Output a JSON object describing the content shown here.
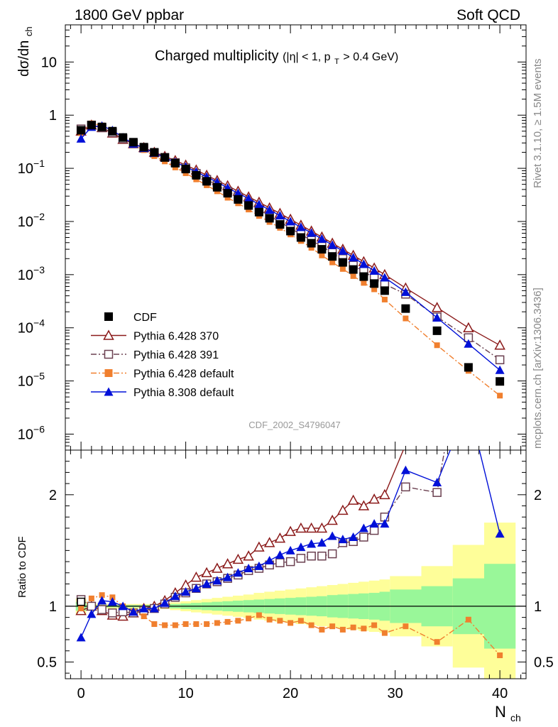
{
  "header": {
    "left": "1800 GeV ppbar",
    "right": "Soft QCD"
  },
  "title": {
    "main": "Charged multiplicity",
    "cut": "(|η| < 1, p",
    "cut_sub": "T",
    "cut_tail": " > 0.4 GeV)"
  },
  "side_labels": {
    "rivet": "Rivet 3.1.10, ≥ 1.5M events",
    "mcplots": "mcplots.cern.ch [arXiv:1306.3436]"
  },
  "analysis_tag": "CDF_2002_S4796047",
  "axes": {
    "ylabel_main": "dσ/dn",
    "ylabel_main_sub": "ch",
    "ylabel_ratio": "Ratio to CDF",
    "xlabel": "N",
    "xlabel_sub": "ch"
  },
  "colors": {
    "cdf": "#000000",
    "p370": "#8b1a1a",
    "p391": "#6b4050",
    "pdef6": "#f07f2e",
    "p8": "#0010d8",
    "band_green": "#99f799",
    "band_yellow": "#fefe99"
  },
  "chart_data": {
    "type": "scatter",
    "main": {
      "y_scale": "log",
      "ylim": [
        5e-07,
        50
      ],
      "ticks_y": [
        "10^-6",
        "10^-5",
        "10^-4",
        "10^-3",
        "10^-2",
        "10^-1",
        "1",
        "10"
      ]
    },
    "ratio": {
      "ylim": [
        0.35,
        2.4
      ],
      "ticks_y": [
        "0.5",
        "1",
        "2"
      ]
    },
    "xlim": [
      -1.5,
      42.5
    ],
    "ticks_x": [
      0,
      10,
      20,
      30,
      40
    ],
    "legend_position": "bottom-left",
    "series": [
      {
        "key": "cdf",
        "name": "CDF",
        "marker": "square-filled",
        "x": [
          0,
          1,
          2,
          3,
          4,
          5,
          6,
          7,
          8,
          9,
          10,
          11,
          12,
          13,
          14,
          15,
          16,
          17,
          18,
          19,
          20,
          21,
          22,
          23,
          24,
          25,
          26,
          27,
          28,
          29,
          31,
          34,
          37,
          40
        ],
        "y": [
          0.52,
          0.65,
          0.6,
          0.5,
          0.38,
          0.31,
          0.25,
          0.2,
          0.16,
          0.125,
          0.097,
          0.074,
          0.057,
          0.044,
          0.034,
          0.026,
          0.02,
          0.015,
          0.0115,
          0.0088,
          0.0066,
          0.005,
          0.0039,
          0.003,
          0.0022,
          0.0017,
          0.00125,
          0.00092,
          0.00068,
          0.0005,
          0.00023,
          8.8e-05,
          1.8e-05,
          9.8e-06
        ]
      },
      {
        "key": "p370",
        "name": "Pythia 6.428 370",
        "marker": "triangle-open",
        "line": "solid",
        "x": [
          0,
          1,
          2,
          3,
          4,
          5,
          6,
          7,
          8,
          9,
          10,
          11,
          12,
          13,
          14,
          15,
          16,
          17,
          18,
          19,
          20,
          21,
          22,
          23,
          24,
          25,
          26,
          27,
          28,
          29,
          31,
          34,
          37,
          40
        ],
        "y": [
          0.5,
          0.65,
          0.58,
          0.46,
          0.35,
          0.29,
          0.245,
          0.2,
          0.168,
          0.14,
          0.115,
          0.093,
          0.074,
          0.059,
          0.047,
          0.037,
          0.029,
          0.023,
          0.018,
          0.0142,
          0.011,
          0.0085,
          0.0066,
          0.0051,
          0.0039,
          0.003,
          0.0023,
          0.00175,
          0.00133,
          0.001,
          0.00056,
          0.00024,
          0.0001,
          4.7e-05
        ],
        "ratio": [
          0.96,
          1.0,
          0.96,
          0.92,
          0.91,
          0.94,
          0.98,
          1.0,
          1.05,
          1.12,
          1.19,
          1.26,
          1.3,
          1.34,
          1.38,
          1.42,
          1.45,
          1.53,
          1.57,
          1.61,
          1.67,
          1.7,
          1.7,
          1.7,
          1.77,
          1.86,
          1.95,
          1.9,
          1.96,
          2.0,
          2.45,
          2.6,
          2.7,
          2.8
        ]
      },
      {
        "key": "p391",
        "name": "Pythia 6.428 391",
        "marker": "square-open",
        "line": "dashdot",
        "x": [
          0,
          1,
          2,
          3,
          4,
          5,
          6,
          7,
          8,
          9,
          10,
          11,
          12,
          13,
          14,
          15,
          16,
          17,
          18,
          19,
          20,
          21,
          22,
          23,
          24,
          25,
          26,
          27,
          28,
          29,
          31,
          34,
          37,
          40
        ],
        "y": [
          0.55,
          0.65,
          0.58,
          0.47,
          0.36,
          0.29,
          0.24,
          0.195,
          0.16,
          0.128,
          0.102,
          0.08,
          0.062,
          0.048,
          0.037,
          0.029,
          0.022,
          0.0168,
          0.0128,
          0.0098,
          0.0075,
          0.0057,
          0.0044,
          0.0034,
          0.0026,
          0.002,
          0.0015,
          0.00115,
          0.00087,
          0.00066,
          0.00043,
          0.00016,
          6.5e-05,
          2.5e-05
        ],
        "ratio": [
          1.06,
          1.0,
          0.97,
          0.94,
          0.95,
          0.94,
          0.96,
          0.98,
          1.02,
          1.08,
          1.12,
          1.16,
          1.2,
          1.22,
          1.25,
          1.28,
          1.32,
          1.34,
          1.37,
          1.39,
          1.4,
          1.43,
          1.45,
          1.45,
          1.47,
          1.57,
          1.58,
          1.62,
          1.68,
          1.8,
          2.07,
          2.02,
          3.6,
          2.6
        ]
      },
      {
        "key": "pdef6",
        "name": "Pythia 6.428 default",
        "marker": "square-filled",
        "line": "dashdot",
        "x": [
          0,
          1,
          2,
          3,
          4,
          5,
          6,
          7,
          8,
          9,
          10,
          11,
          12,
          13,
          14,
          15,
          16,
          17,
          18,
          19,
          20,
          21,
          22,
          23,
          24,
          25,
          26,
          27,
          28,
          29,
          31,
          34,
          37,
          40
        ],
        "y": [
          0.46,
          0.7,
          0.64,
          0.51,
          0.37,
          0.29,
          0.22,
          0.17,
          0.135,
          0.104,
          0.081,
          0.062,
          0.048,
          0.037,
          0.028,
          0.022,
          0.0168,
          0.0127,
          0.0098,
          0.0076,
          0.0057,
          0.0043,
          0.0032,
          0.0023,
          0.0017,
          0.00128,
          0.00094,
          0.0007,
          0.00053,
          0.00034,
          0.00015,
          4.7e-05,
          1.55e-05,
          5.3e-06
        ],
        "ratio": [
          0.98,
          1.07,
          1.1,
          1.08,
          1.0,
          0.95,
          0.91,
          0.84,
          0.83,
          0.83,
          0.84,
          0.84,
          0.84,
          0.85,
          0.86,
          0.87,
          0.89,
          0.92,
          0.88,
          0.87,
          0.85,
          0.87,
          0.83,
          0.79,
          0.82,
          0.79,
          0.81,
          0.8,
          0.83,
          0.76,
          0.82,
          0.68,
          0.88,
          0.56
        ]
      },
      {
        "key": "p8",
        "name": "Pythia 8.308 default",
        "marker": "triangle-filled",
        "line": "solid",
        "x": [
          0,
          1,
          2,
          3,
          4,
          5,
          6,
          7,
          8,
          9,
          10,
          11,
          12,
          13,
          14,
          15,
          16,
          17,
          18,
          19,
          20,
          21,
          22,
          23,
          24,
          25,
          26,
          27,
          28,
          29,
          31,
          34,
          37,
          40
        ],
        "y": [
          0.36,
          0.6,
          0.63,
          0.52,
          0.38,
          0.29,
          0.24,
          0.195,
          0.16,
          0.13,
          0.107,
          0.086,
          0.069,
          0.055,
          0.043,
          0.034,
          0.027,
          0.021,
          0.0165,
          0.0129,
          0.01,
          0.0078,
          0.0061,
          0.0047,
          0.0036,
          0.0028,
          0.0021,
          0.00158,
          0.00118,
          0.00088,
          0.00047,
          0.000155,
          5e-05,
          1.6e-05
        ],
        "ratio": [
          0.72,
          0.93,
          1.05,
          1.04,
          1.0,
          0.95,
          0.98,
          0.98,
          1.03,
          1.09,
          1.13,
          1.16,
          1.2,
          1.23,
          1.26,
          1.3,
          1.34,
          1.36,
          1.41,
          1.46,
          1.5,
          1.53,
          1.56,
          1.57,
          1.63,
          1.6,
          1.62,
          1.7,
          1.74,
          1.74,
          2.22,
          2.11,
          2.8,
          1.65
        ]
      }
    ],
    "band_green": {
      "x_edges": [
        -0.5,
        0.5,
        1.5,
        2.5,
        3.5,
        4.5,
        5.5,
        6.5,
        7.5,
        8.5,
        9.5,
        10.5,
        11.5,
        12.5,
        13.5,
        14.5,
        15.5,
        16.5,
        17.5,
        18.5,
        19.5,
        20.5,
        21.5,
        22.5,
        23.5,
        24.5,
        25.5,
        26.5,
        27.5,
        28.5,
        29.5,
        32.5,
        35.5,
        38.5,
        41.5
      ],
      "half_width": [
        0.04,
        0.01,
        0.01,
        0.01,
        0.01,
        0.01,
        0.01,
        0.01,
        0.015,
        0.02,
        0.025,
        0.03,
        0.035,
        0.04,
        0.045,
        0.05,
        0.055,
        0.06,
        0.065,
        0.07,
        0.075,
        0.08,
        0.085,
        0.09,
        0.1,
        0.105,
        0.11,
        0.115,
        0.12,
        0.13,
        0.15,
        0.18,
        0.25,
        0.38
      ]
    },
    "band_yellow": {
      "half_width": [
        0.07,
        0.02,
        0.02,
        0.02,
        0.02,
        0.02,
        0.02,
        0.02,
        0.025,
        0.035,
        0.045,
        0.055,
        0.065,
        0.075,
        0.085,
        0.095,
        0.105,
        0.12,
        0.13,
        0.14,
        0.15,
        0.16,
        0.17,
        0.18,
        0.19,
        0.2,
        0.21,
        0.22,
        0.23,
        0.24,
        0.27,
        0.36,
        0.55,
        0.75
      ]
    }
  }
}
